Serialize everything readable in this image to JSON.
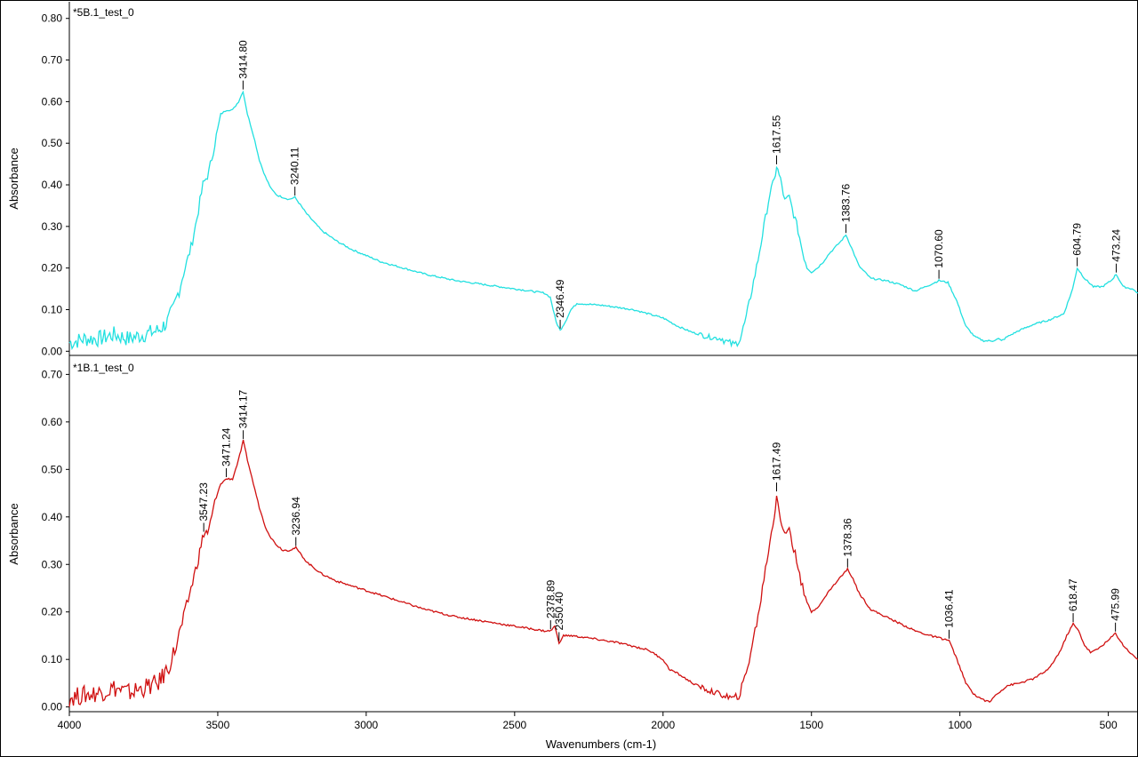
{
  "chart_data": [
    {
      "type": "line",
      "title": "*5B.1_test_0",
      "xlabel": "",
      "ylabel": "Absorbance",
      "xlim": [
        4000,
        400
      ],
      "ylim": [
        -0.01,
        0.84
      ],
      "yticks": [
        "0.00",
        "0.10",
        "0.20",
        "0.30",
        "0.40",
        "0.50",
        "0.60",
        "0.70",
        "0.80"
      ],
      "color": "#22e0e0",
      "series": [
        {
          "x": [
            4000,
            3950,
            3900,
            3850,
            3800,
            3750,
            3700,
            3670,
            3650,
            3630,
            3610,
            3590,
            3570,
            3550,
            3530,
            3510,
            3490,
            3470,
            3450,
            3430,
            3414.8,
            3400,
            3380,
            3360,
            3340,
            3320,
            3300,
            3280,
            3260,
            3240.11,
            3200,
            3150,
            3100,
            3050,
            3000,
            2950,
            2900,
            2850,
            2800,
            2700,
            2600,
            2500,
            2450,
            2400,
            2380,
            2360,
            2346.49,
            2330,
            2310,
            2290,
            2250,
            2200,
            2100,
            2050,
            2000,
            1950,
            1900,
            1850,
            1800,
            1780,
            1760,
            1740,
            1720,
            1700,
            1680,
            1660,
            1640,
            1625,
            1617.55,
            1600,
            1590,
            1575,
            1560,
            1545,
            1530,
            1515,
            1500,
            1480,
            1460,
            1440,
            1420,
            1400,
            1383.76,
            1360,
            1340,
            1300,
            1250,
            1200,
            1150,
            1100,
            1070.6,
            1040,
            1010,
            980,
            950,
            920,
            890,
            870,
            860,
            840,
            800,
            750,
            700,
            650,
            620,
            604.79,
            580,
            550,
            520,
            490,
            473.24,
            450,
            420,
            400
          ],
          "y": [
            0.02,
            0.03,
            0.03,
            0.04,
            0.03,
            0.04,
            0.05,
            0.07,
            0.1,
            0.15,
            0.2,
            0.25,
            0.32,
            0.4,
            0.43,
            0.5,
            0.57,
            0.58,
            0.58,
            0.6,
            0.625,
            0.57,
            0.52,
            0.46,
            0.42,
            0.39,
            0.375,
            0.37,
            0.365,
            0.37,
            0.33,
            0.29,
            0.265,
            0.245,
            0.23,
            0.215,
            0.205,
            0.195,
            0.185,
            0.17,
            0.16,
            0.15,
            0.145,
            0.14,
            0.13,
            0.07,
            0.05,
            0.07,
            0.1,
            0.115,
            0.113,
            0.11,
            0.1,
            0.09,
            0.08,
            0.06,
            0.045,
            0.035,
            0.03,
            0.02,
            0.015,
            0.03,
            0.08,
            0.15,
            0.22,
            0.3,
            0.38,
            0.41,
            0.445,
            0.4,
            0.36,
            0.37,
            0.33,
            0.29,
            0.24,
            0.2,
            0.19,
            0.2,
            0.215,
            0.235,
            0.25,
            0.265,
            0.28,
            0.24,
            0.205,
            0.175,
            0.17,
            0.16,
            0.145,
            0.16,
            0.17,
            0.165,
            0.12,
            0.06,
            0.035,
            0.025,
            0.025,
            0.03,
            0.025,
            0.035,
            0.05,
            0.065,
            0.075,
            0.09,
            0.15,
            0.2,
            0.175,
            0.155,
            0.155,
            0.17,
            0.185,
            0.155,
            0.15,
            0.14
          ]
        }
      ],
      "annotations": [
        {
          "label": "3414.80",
          "x": 3414.8,
          "y": 0.625
        },
        {
          "label": "3240.11",
          "x": 3240.11,
          "y": 0.37
        },
        {
          "label": "2346.49",
          "x": 2346.49,
          "y": 0.05
        },
        {
          "label": "1617.55",
          "x": 1617.55,
          "y": 0.445
        },
        {
          "label": "1383.76",
          "x": 1383.76,
          "y": 0.28
        },
        {
          "label": "1070.60",
          "x": 1070.6,
          "y": 0.17
        },
        {
          "label": "604.79",
          "x": 604.79,
          "y": 0.2
        },
        {
          "label": "473.24",
          "x": 473.24,
          "y": 0.185
        }
      ]
    },
    {
      "type": "line",
      "title": "*1B.1_test_0",
      "xlabel": "Wavenumbers (cm-1)",
      "ylabel": "Absorbance",
      "xlim": [
        4000,
        400
      ],
      "ylim": [
        -0.01,
        0.74
      ],
      "yticks": [
        "0.00",
        "0.10",
        "0.20",
        "0.30",
        "0.40",
        "0.50",
        "0.60",
        "0.70"
      ],
      "xticks": [
        "4000",
        "3500",
        "3000",
        "2500",
        "2000",
        "1500",
        "1000",
        "500"
      ],
      "color": "#d01010",
      "series": [
        {
          "x": [
            4000,
            3950,
            3900,
            3850,
            3800,
            3750,
            3700,
            3670,
            3650,
            3630,
            3610,
            3590,
            3570,
            3547.23,
            3530,
            3510,
            3490,
            3471.24,
            3450,
            3430,
            3414.17,
            3400,
            3380,
            3360,
            3340,
            3320,
            3300,
            3280,
            3260,
            3236.94,
            3200,
            3150,
            3100,
            3050,
            3000,
            2950,
            2900,
            2850,
            2800,
            2700,
            2600,
            2500,
            2450,
            2400,
            2378.89,
            2365,
            2350.4,
            2335,
            2310,
            2250,
            2150,
            2050,
            2000,
            1980,
            1950,
            1900,
            1850,
            1800,
            1780,
            1760,
            1740,
            1720,
            1700,
            1680,
            1660,
            1640,
            1625,
            1617.49,
            1600,
            1590,
            1575,
            1560,
            1545,
            1530,
            1515,
            1500,
            1480,
            1460,
            1440,
            1420,
            1400,
            1378.36,
            1360,
            1340,
            1300,
            1250,
            1200,
            1150,
            1100,
            1036.41,
            1010,
            980,
            950,
            920,
            900,
            880,
            860,
            840,
            800,
            750,
            700,
            660,
            640,
            618.47,
            600,
            580,
            560,
            540,
            520,
            500,
            475.99,
            450,
            420,
            400
          ],
          "y": [
            0.02,
            0.025,
            0.03,
            0.04,
            0.03,
            0.04,
            0.05,
            0.08,
            0.11,
            0.15,
            0.2,
            0.25,
            0.3,
            0.365,
            0.37,
            0.43,
            0.47,
            0.48,
            0.48,
            0.52,
            0.56,
            0.52,
            0.47,
            0.42,
            0.38,
            0.355,
            0.34,
            0.33,
            0.33,
            0.335,
            0.305,
            0.28,
            0.265,
            0.255,
            0.245,
            0.235,
            0.225,
            0.215,
            0.205,
            0.19,
            0.18,
            0.17,
            0.165,
            0.16,
            0.16,
            0.17,
            0.135,
            0.15,
            0.15,
            0.145,
            0.135,
            0.12,
            0.1,
            0.08,
            0.07,
            0.05,
            0.035,
            0.025,
            0.02,
            0.015,
            0.03,
            0.07,
            0.13,
            0.19,
            0.27,
            0.35,
            0.4,
            0.45,
            0.38,
            0.36,
            0.38,
            0.33,
            0.3,
            0.25,
            0.22,
            0.2,
            0.21,
            0.225,
            0.245,
            0.26,
            0.275,
            0.29,
            0.27,
            0.24,
            0.205,
            0.19,
            0.175,
            0.16,
            0.15,
            0.14,
            0.1,
            0.05,
            0.025,
            0.015,
            0.01,
            0.025,
            0.035,
            0.045,
            0.05,
            0.06,
            0.08,
            0.12,
            0.15,
            0.175,
            0.16,
            0.13,
            0.115,
            0.12,
            0.13,
            0.14,
            0.155,
            0.13,
            0.11,
            0.1
          ]
        }
      ],
      "annotations": [
        {
          "label": "3547.23",
          "x": 3547.23,
          "y": 0.365
        },
        {
          "label": "3471.24",
          "x": 3471.24,
          "y": 0.48
        },
        {
          "label": "3414.17",
          "x": 3414.17,
          "y": 0.56
        },
        {
          "label": "3236.94",
          "x": 3236.94,
          "y": 0.335
        },
        {
          "label": "2378.89",
          "x": 2378.89,
          "y": 0.16
        },
        {
          "label": "2350.40",
          "x": 2350.4,
          "y": 0.135
        },
        {
          "label": "1617.49",
          "x": 1617.49,
          "y": 0.45
        },
        {
          "label": "1378.36",
          "x": 1378.36,
          "y": 0.29
        },
        {
          "label": "1036.41",
          "x": 1036.41,
          "y": 0.14
        },
        {
          "label": "618.47",
          "x": 618.47,
          "y": 0.175
        },
        {
          "label": "475.99",
          "x": 475.99,
          "y": 0.155
        }
      ]
    }
  ]
}
